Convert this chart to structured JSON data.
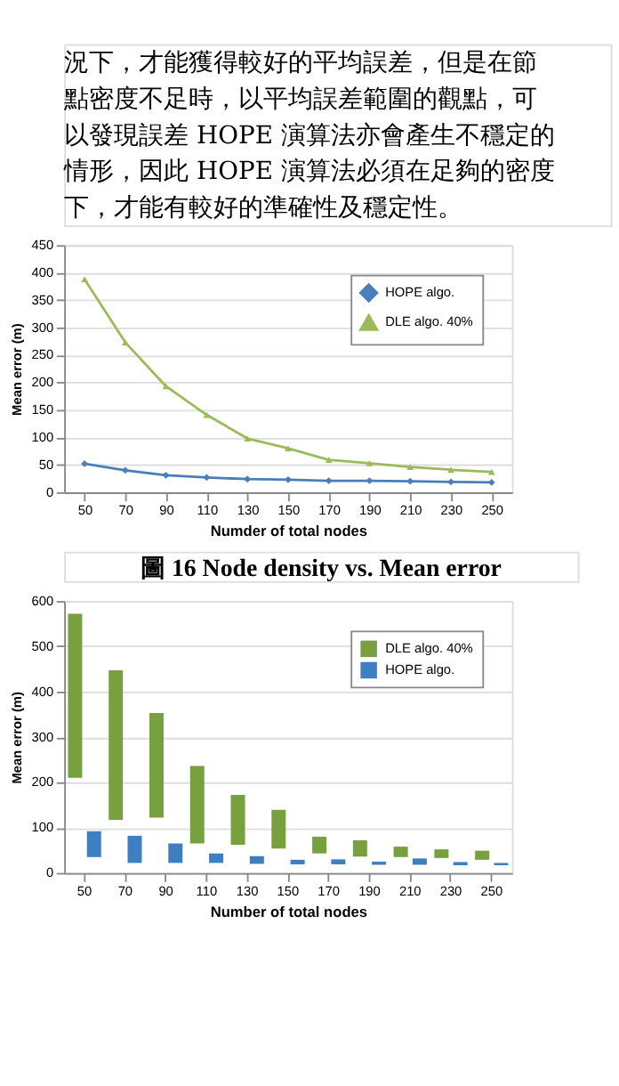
{
  "chart_data": [
    {
      "type": "line",
      "annotations": [
        "況下，才能獲得較好的平均誤差，但是在節",
        "點密度不足時，以平均誤差範圍的觀點，可",
        "以發現誤差 HOPE 演算法亦會產生不穩定的",
        "情形，因此 HOPE 演算法必須在足夠的密度",
        "下，才能有較好的準確性及穩定性。",
        "圖  16 Node density vs. Mean error"
      ],
      "xlabel": "Numder of total nodes",
      "ylabel": "Mean error (m)",
      "categories": [
        "50",
        "70",
        "90",
        "110",
        "130",
        "150",
        "170",
        "190",
        "210",
        "230",
        "250"
      ],
      "series": [
        {
          "name": "HOPE algo.",
          "color": "#4a7ebb",
          "marker": "diamond",
          "values": [
            52,
            40,
            31,
            27,
            24,
            23,
            21,
            21,
            20,
            19,
            18
          ]
        },
        {
          "name": "DLE algo. 40%",
          "color": "#9bbb59",
          "marker": "triangle",
          "values": [
            388,
            273,
            193,
            141,
            98,
            80,
            59,
            53,
            46,
            41,
            37
          ]
        }
      ],
      "ylim": [
        0,
        450
      ],
      "yticks": [
        0,
        50,
        100,
        150,
        200,
        250,
        300,
        350,
        400,
        450
      ],
      "grid": "y",
      "legend": "top right"
    },
    {
      "type": "bar",
      "xlabel": "Number of total nodes",
      "ylabel": "Mean error (m)",
      "categories": [
        "50",
        "70",
        "90",
        "110",
        "130",
        "150",
        "170",
        "190",
        "210",
        "230",
        "250"
      ],
      "series": [
        {
          "name": "DLE algo. 40%",
          "color": "#77a03f",
          "base": [
            210,
            117,
            122,
            65,
            62,
            54,
            43,
            36,
            35,
            33,
            29
          ],
          "values": [
            362,
            330,
            231,
            171,
            110,
            85,
            37,
            36,
            23,
            19,
            20
          ]
        },
        {
          "name": "HOPE algo.",
          "color": "#3d7fc1",
          "base": [
            35,
            22,
            22,
            22,
            20,
            19,
            19,
            18,
            18,
            17,
            17
          ],
          "values": [
            57,
            60,
            43,
            21,
            17,
            10,
            11,
            7,
            14,
            7,
            5
          ]
        }
      ],
      "ylim": [
        0,
        600
      ],
      "yticks": [
        0,
        100,
        200,
        300,
        400,
        500,
        600
      ],
      "grid": "y",
      "legend": "top right"
    }
  ]
}
